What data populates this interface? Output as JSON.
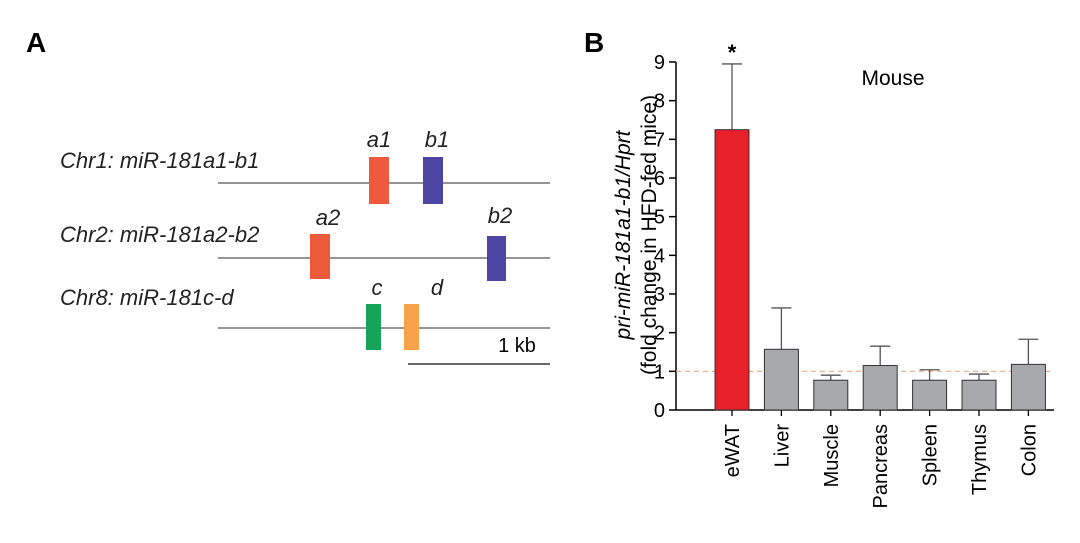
{
  "panel_a": {
    "letter": "A",
    "scale_bar_label": "1 kb",
    "loci": [
      {
        "label": "Chr1: miR-181a1-b1",
        "genes": [
          {
            "name": "a1",
            "color": "#ef5a3c"
          },
          {
            "name": "b1",
            "color": "#4c45a3"
          }
        ]
      },
      {
        "label": "Chr2: miR-181a2-b2",
        "genes": [
          {
            "name": "a2",
            "color": "#ef5a3c"
          },
          {
            "name": "b2",
            "color": "#4c45a3"
          }
        ]
      },
      {
        "label": "Chr8: miR-181c-d",
        "genes": [
          {
            "name": "c",
            "color": "#16a35a"
          },
          {
            "name": "d",
            "color": "#f6a34a"
          }
        ]
      }
    ]
  },
  "panel_b": {
    "letter": "B",
    "annotation": "Mouse",
    "significance_marker": "*"
  },
  "chart_data": {
    "type": "bar",
    "categories": [
      "eWAT",
      "Liver",
      "Muscle",
      "Pancreas",
      "Spleen",
      "Thymus",
      "Colon"
    ],
    "values": [
      7.25,
      1.57,
      0.77,
      1.15,
      0.77,
      0.77,
      1.18
    ],
    "errors": [
      1.7,
      1.07,
      0.13,
      0.5,
      0.27,
      0.16,
      0.65
    ],
    "colors": [
      "#e8202a",
      "#a7a9ac",
      "#a7a9ac",
      "#a7a9ac",
      "#a7a9ac",
      "#a7a9ac",
      "#a7a9ac"
    ],
    "significant": [
      true,
      false,
      false,
      false,
      false,
      false,
      false
    ],
    "ylabel_line1": "pri-miR-181a1-b1/Hprt",
    "ylabel_line2": "(fold change in HFD-fed mice)",
    "yticks": [
      0,
      1,
      2,
      3,
      4,
      5,
      6,
      7,
      8,
      9
    ],
    "ylim": [
      0,
      9
    ],
    "reference_line": 1,
    "reference_line_color": "#f4a582"
  }
}
